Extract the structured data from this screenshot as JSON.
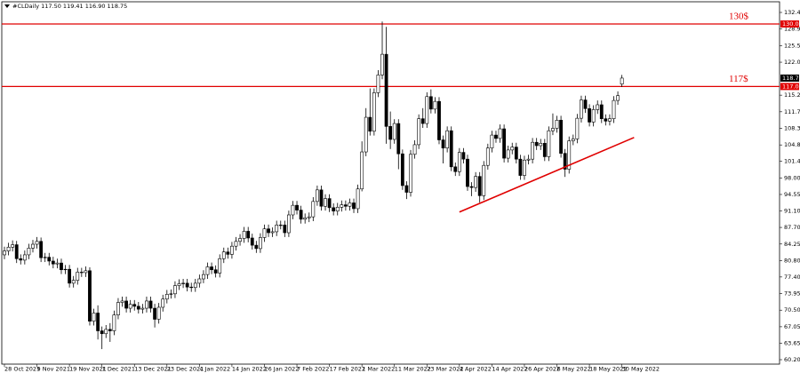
{
  "chart_data": {
    "type": "candlestick",
    "title": "#CLDaily 117.50 119.41 116.90 118.75",
    "ylim": [
      60.2,
      132.4
    ],
    "yticks": [
      {
        "value": 132.4,
        "label": "132.40"
      },
      {
        "value": 128.95,
        "label": "128.95"
      },
      {
        "value": 125.5,
        "label": "125.50"
      },
      {
        "value": 122.05,
        "label": "122.05"
      },
      {
        "value": 115.2,
        "label": "115.20"
      },
      {
        "value": 111.75,
        "label": "111.75"
      },
      {
        "value": 108.3,
        "label": "108.30"
      },
      {
        "value": 104.85,
        "label": "104.85"
      },
      {
        "value": 101.45,
        "label": "101.45"
      },
      {
        "value": 98,
        "label": "98.00"
      },
      {
        "value": 94.55,
        "label": "94.55"
      },
      {
        "value": 91.1,
        "label": "91.10"
      },
      {
        "value": 87.7,
        "label": "87.70"
      },
      {
        "value": 84.25,
        "label": "84.25"
      },
      {
        "value": 80.8,
        "label": "80.80"
      },
      {
        "value": 77.4,
        "label": "77.40"
      },
      {
        "value": 73.95,
        "label": "73.95"
      },
      {
        "value": 70.5,
        "label": "70.50"
      },
      {
        "value": 67.05,
        "label": "67.05"
      },
      {
        "value": 63.65,
        "label": "63.65"
      },
      {
        "value": 60.2,
        "label": "60.20"
      }
    ],
    "xlim": [
      -1,
      191
    ],
    "xticks": [
      {
        "value": 0,
        "label": "28 Oct 2021"
      },
      {
        "value": 8,
        "label": "9 Nov 2021"
      },
      {
        "value": 16,
        "label": "19 Nov 2021"
      },
      {
        "value": 24,
        "label": "1 Dec 2021"
      },
      {
        "value": 32,
        "label": "13 Dec 2021"
      },
      {
        "value": 40,
        "label": "23 Dec 2021"
      },
      {
        "value": 48,
        "label": "4 Jan 2022"
      },
      {
        "value": 56,
        "label": "14 Jan 2022"
      },
      {
        "value": 64,
        "label": "26 Jan 2022"
      },
      {
        "value": 72,
        "label": "7 Feb 2022"
      },
      {
        "value": 80,
        "label": "17 Feb 2022"
      },
      {
        "value": 88,
        "label": "1 Mar 2022"
      },
      {
        "value": 96,
        "label": "11 Mar 2022"
      },
      {
        "value": 104,
        "label": "23 Mar 2022"
      },
      {
        "value": 112,
        "label": "4 Apr 2022"
      },
      {
        "value": 120,
        "label": "14 Apr 2022"
      },
      {
        "value": 128,
        "label": "26 Apr 2022"
      },
      {
        "value": 136,
        "label": "6 May 2022"
      },
      {
        "value": 144,
        "label": "18 May 2022"
      },
      {
        "value": 152,
        "label": "30 May 2022"
      }
    ],
    "up_color": "#ffffff",
    "down_color": "#000000",
    "open": [
      82.0,
      82.8,
      83.6,
      84.1,
      81.2,
      80.9,
      82.0,
      83.4,
      84.2,
      84.8,
      81.4,
      81.5,
      80.7,
      80.1,
      80.3,
      78.9,
      79.0,
      76.1,
      76.7,
      78.4,
      78.3,
      78.7,
      68.2,
      69.9,
      66.2,
      65.6,
      66.5,
      66.2,
      69.5,
      72.1,
      72.4,
      70.9,
      71.7,
      71.3,
      70.7,
      70.9,
      72.4,
      70.9,
      68.6,
      71.1,
      72.8,
      73.8,
      73.9,
      75.6,
      76.0,
      76.1,
      75.3,
      75.2,
      76.1,
      77.0,
      77.9,
      79.5,
      78.9,
      78.2,
      81.2,
      82.6,
      82.1,
      83.8,
      84.8,
      85.4,
      86.9,
      85.5,
      84.0,
      83.3,
      85.6,
      87.4,
      86.6,
      86.8,
      88.2,
      88.2,
      86.6,
      90.3,
      92.3,
      91.3,
      89.4,
      89.7,
      89.9,
      93.1,
      95.5,
      92.1,
      93.7,
      91.8,
      91.1,
      91.9,
      92.4,
      92.1,
      92.8,
      91.6,
      95.7,
      103.4,
      110.6,
      107.7,
      115.7,
      119.4,
      123.7,
      108.7,
      106.0,
      109.3,
      103.0,
      96.4,
      95.0,
      102.9,
      104.9,
      110.3,
      109.3,
      114.9,
      112.3,
      113.9,
      105.9,
      104.2,
      107.8,
      100.3,
      99.3,
      103.3,
      101.9,
      96.2,
      96.0,
      98.3,
      94.3,
      100.6,
      104.2,
      106.9,
      106.2,
      108.2,
      102.1,
      103.8,
      104.4,
      101.9,
      98.5,
      101.7,
      101.9,
      105.4,
      104.7,
      105.2,
      102.4,
      107.8,
      108.3,
      110.0,
      103.1,
      99.8,
      105.7,
      106.1,
      110.4,
      114.2,
      112.4,
      109.6,
      112.2,
      113.2,
      110.3,
      109.8,
      110.3,
      114.1,
      117.5
    ],
    "high": [
      83.7,
      84.5,
      85.0,
      84.9,
      82.1,
      82.9,
      84.3,
      85.1,
      85.7,
      85.6,
      82.4,
      82.4,
      81.6,
      81.2,
      81.2,
      79.9,
      79.9,
      77.6,
      79.3,
      79.3,
      79.6,
      79.4,
      70.8,
      71.5,
      67.1,
      67.4,
      67.8,
      70.4,
      73.0,
      73.3,
      73.3,
      72.6,
      72.6,
      72.2,
      71.8,
      73.3,
      73.3,
      71.8,
      72.0,
      73.7,
      74.7,
      74.8,
      76.5,
      76.9,
      77.0,
      77.0,
      76.2,
      77.0,
      77.9,
      78.8,
      80.4,
      80.4,
      79.8,
      82.1,
      83.5,
      83.5,
      84.7,
      85.7,
      86.3,
      87.8,
      87.8,
      86.4,
      84.9,
      86.5,
      88.3,
      88.3,
      87.7,
      89.1,
      89.1,
      89.1,
      91.2,
      93.2,
      93.2,
      92.2,
      90.6,
      90.8,
      94.0,
      96.4,
      96.4,
      94.6,
      94.6,
      92.7,
      92.8,
      93.3,
      93.3,
      93.7,
      93.7,
      96.6,
      105.6,
      112.5,
      116.6,
      116.6,
      120.4,
      130.5,
      129.4,
      111.8,
      110.2,
      110.2,
      103.9,
      97.3,
      103.8,
      105.8,
      111.2,
      112.5,
      115.8,
      116.4,
      114.8,
      114.8,
      106.8,
      108.7,
      108.7,
      101.2,
      104.2,
      104.2,
      102.8,
      97.1,
      99.2,
      99.2,
      101.5,
      105.1,
      107.8,
      107.8,
      109.1,
      109.1,
      104.7,
      105.3,
      105.3,
      102.8,
      102.6,
      102.8,
      106.3,
      106.3,
      106.1,
      106.1,
      108.7,
      111.4,
      110.9,
      110.9,
      104.0,
      106.6,
      107.0,
      111.3,
      115.1,
      115.1,
      113.3,
      113.1,
      114.1,
      114.1,
      111.2,
      111.2,
      115.0,
      116.0,
      119.41
    ],
    "low": [
      81.1,
      81.9,
      82.7,
      80.3,
      80.0,
      80.0,
      81.1,
      82.5,
      83.3,
      80.5,
      80.5,
      79.8,
      79.2,
      79.2,
      78.0,
      78.0,
      75.2,
      75.2,
      75.8,
      77.4,
      77.4,
      67.3,
      67.3,
      64.4,
      62.4,
      64.7,
      63.9,
      65.3,
      68.6,
      71.2,
      70.0,
      70.0,
      70.4,
      69.8,
      69.8,
      70.0,
      70.0,
      66.9,
      67.7,
      70.2,
      71.9,
      72.9,
      73.0,
      74.7,
      75.1,
      74.4,
      74.3,
      74.3,
      75.2,
      76.1,
      77.0,
      78.0,
      77.3,
      77.3,
      80.3,
      81.2,
      81.2,
      82.9,
      83.9,
      84.5,
      84.6,
      83.1,
      82.4,
      82.4,
      84.7,
      85.7,
      85.7,
      85.9,
      87.3,
      85.7,
      85.7,
      89.4,
      90.4,
      88.5,
      88.5,
      88.8,
      89.0,
      92.2,
      91.2,
      91.2,
      90.9,
      90.2,
      90.2,
      91.0,
      91.2,
      91.2,
      90.7,
      90.7,
      95.2,
      102.5,
      106.8,
      106.8,
      114.8,
      118.5,
      105.1,
      104.0,
      105.1,
      99.8,
      95.5,
      93.6,
      94.1,
      102.0,
      104.0,
      108.4,
      108.4,
      111.4,
      111.4,
      105.0,
      101.0,
      103.3,
      99.4,
      98.4,
      98.4,
      101.0,
      95.3,
      94.2,
      95.1,
      92.9,
      93.4,
      99.7,
      103.3,
      105.3,
      105.3,
      101.2,
      101.2,
      102.9,
      101.0,
      97.6,
      97.6,
      100.8,
      101.0,
      103.8,
      103.8,
      101.5,
      101.5,
      106.9,
      107.4,
      102.2,
      98.2,
      98.9,
      104.8,
      105.2,
      109.5,
      111.5,
      108.7,
      108.7,
      111.3,
      109.4,
      108.9,
      108.9,
      109.4,
      113.2,
      116.9
    ],
    "close": [
      82.8,
      83.6,
      84.1,
      81.2,
      80.9,
      82.0,
      83.4,
      84.2,
      84.8,
      81.4,
      81.5,
      80.7,
      80.1,
      80.3,
      78.9,
      79.0,
      76.1,
      76.7,
      78.4,
      78.3,
      78.7,
      68.2,
      69.9,
      66.2,
      65.6,
      66.5,
      66.2,
      69.5,
      72.1,
      72.4,
      70.9,
      71.7,
      71.3,
      70.7,
      70.9,
      72.4,
      70.9,
      68.6,
      71.1,
      72.8,
      73.8,
      73.9,
      75.6,
      76.0,
      76.1,
      75.3,
      75.2,
      76.1,
      77.0,
      77.9,
      79.5,
      78.9,
      78.2,
      81.2,
      82.6,
      82.1,
      83.8,
      84.8,
      85.4,
      86.9,
      85.5,
      84.0,
      83.3,
      85.6,
      87.4,
      86.6,
      86.8,
      88.2,
      88.2,
      86.6,
      90.3,
      92.3,
      91.3,
      89.4,
      89.7,
      89.9,
      93.1,
      95.5,
      92.1,
      93.7,
      91.8,
      91.1,
      91.9,
      92.4,
      92.1,
      92.8,
      91.6,
      95.7,
      103.4,
      110.6,
      107.7,
      115.7,
      119.4,
      123.7,
      108.7,
      106.0,
      109.3,
      103.0,
      96.4,
      95.0,
      102.9,
      104.9,
      110.3,
      109.3,
      114.9,
      112.3,
      113.9,
      105.9,
      104.2,
      107.8,
      100.3,
      99.3,
      103.3,
      101.9,
      96.2,
      96.0,
      98.3,
      94.3,
      100.6,
      104.2,
      106.9,
      106.2,
      108.2,
      102.1,
      103.8,
      104.4,
      101.9,
      98.5,
      101.7,
      101.9,
      105.4,
      104.7,
      105.2,
      102.4,
      107.8,
      108.3,
      110.0,
      103.1,
      99.8,
      105.7,
      106.1,
      110.4,
      114.2,
      112.4,
      109.6,
      112.2,
      113.2,
      110.3,
      109.8,
      110.3,
      114.1,
      115.1,
      118.75
    ],
    "hlines": [
      {
        "value": 130,
        "label": "130$",
        "color": "#e00000"
      },
      {
        "value": 117,
        "label": "117$",
        "color": "#e00000"
      }
    ],
    "price_labels": [
      {
        "value": 130,
        "label": "130.00",
        "color": "#e00000"
      },
      {
        "value": 118.75,
        "label": "118.75",
        "color": "#000000"
      },
      {
        "value": 117,
        "label": "117.00",
        "color": "#e00000"
      }
    ],
    "trendline": {
      "x": [
        112,
        155
      ],
      "y": [
        90.9,
        106.4
      ],
      "color": "#e00000"
    }
  }
}
